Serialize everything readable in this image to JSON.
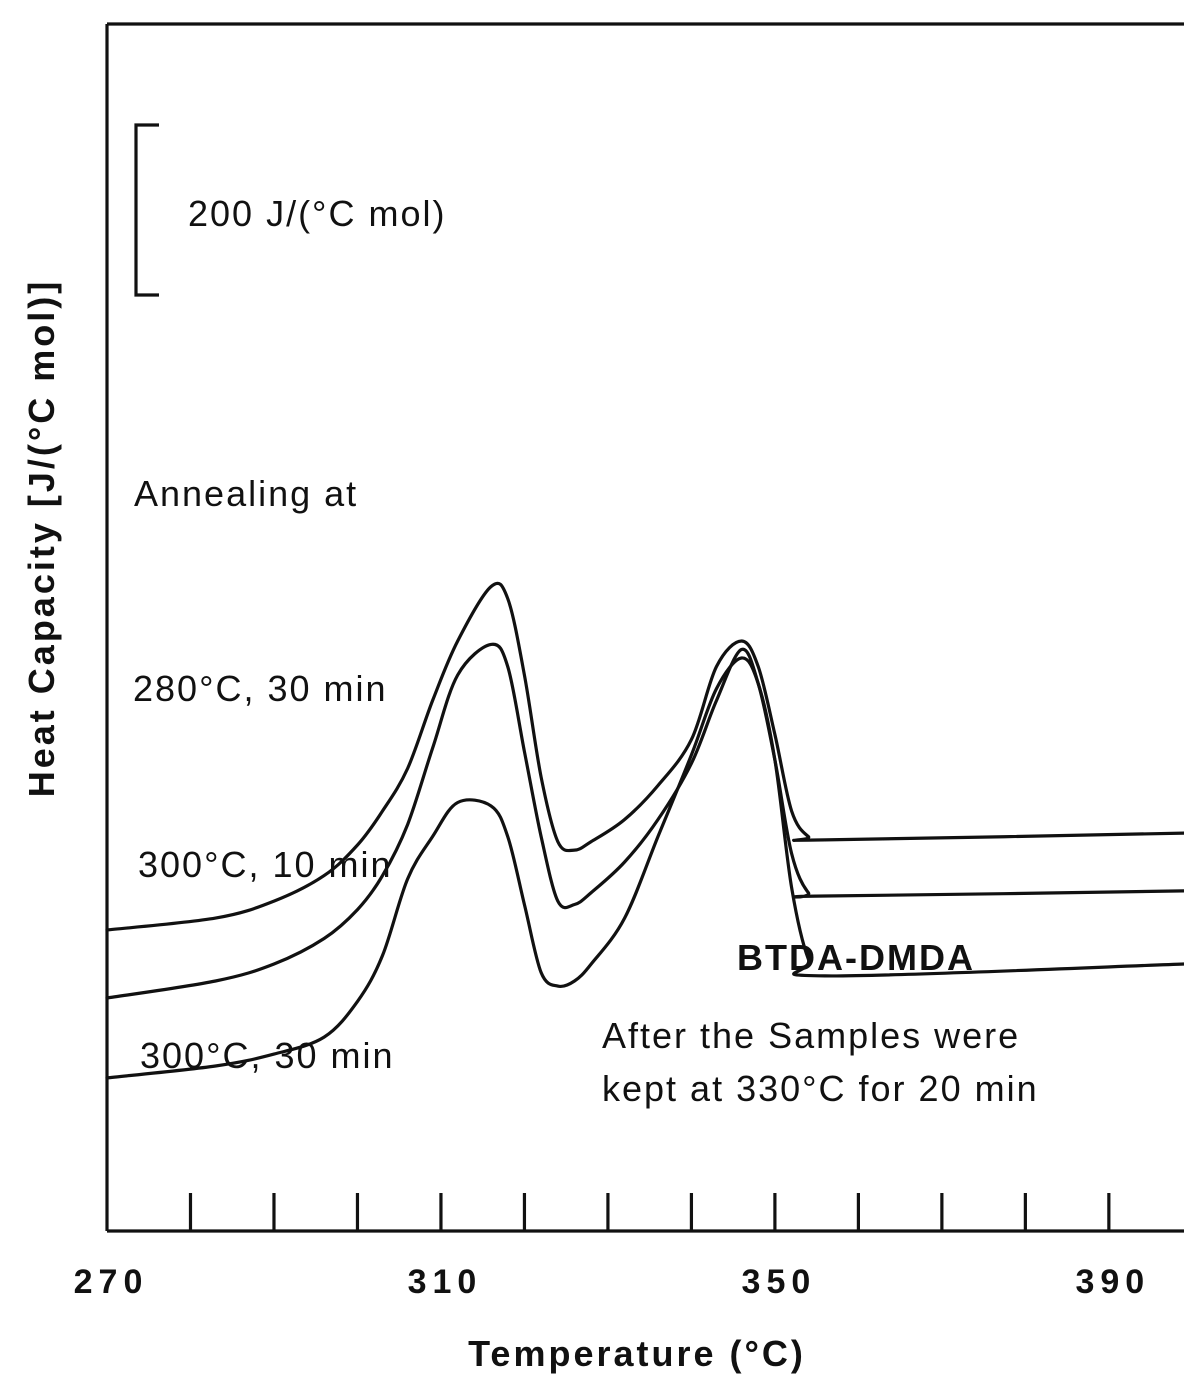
{
  "chart_data": {
    "type": "line",
    "title": "",
    "xlabel": "Temperature   (°C)",
    "ylabel": "Heat  Capacity  [J/(°C  mol)]",
    "xlim": [
      270,
      399
    ],
    "x_tick_labels": [
      "270",
      "310",
      "350",
      "390"
    ],
    "x_ticks": [
      270,
      280,
      290,
      300,
      310,
      320,
      330,
      340,
      350,
      360,
      370,
      380,
      390
    ],
    "scale_bar_label": "200  J/(°C  mol)",
    "legend_heading": "Annealing at",
    "annotations": [
      "BTDA-DMDA",
      "After the Samples were",
      "kept at 330°C for 20 min"
    ],
    "series": [
      {
        "name": "280°C, 30 min",
        "points": [
          [
            270,
            1.0
          ],
          [
            283,
            1.07
          ],
          [
            290,
            1.17
          ],
          [
            296,
            1.32
          ],
          [
            300,
            1.5
          ],
          [
            303,
            1.7
          ],
          [
            306,
            1.95
          ],
          [
            309,
            2.35
          ],
          [
            312,
            2.7
          ],
          [
            316,
            3.02
          ],
          [
            318,
            2.95
          ],
          [
            320,
            2.5
          ],
          [
            322,
            1.9
          ],
          [
            324,
            1.52
          ],
          [
            326,
            1.47
          ],
          [
            328,
            1.52
          ],
          [
            332,
            1.65
          ],
          [
            336,
            1.85
          ],
          [
            340,
            2.12
          ],
          [
            343,
            2.55
          ],
          [
            346,
            2.7
          ],
          [
            348,
            2.55
          ],
          [
            350,
            2.15
          ],
          [
            352,
            1.7
          ],
          [
            354,
            1.55
          ],
          [
            356,
            1.53
          ],
          [
            399,
            1.57
          ]
        ]
      },
      {
        "name": "300°C, 10 min",
        "points": [
          [
            270,
            0.6
          ],
          [
            283,
            0.7
          ],
          [
            290,
            0.8
          ],
          [
            296,
            0.95
          ],
          [
            300,
            1.12
          ],
          [
            303,
            1.32
          ],
          [
            306,
            1.62
          ],
          [
            309,
            2.07
          ],
          [
            312,
            2.5
          ],
          [
            316,
            2.68
          ],
          [
            318,
            2.55
          ],
          [
            320,
            2.05
          ],
          [
            322,
            1.55
          ],
          [
            324,
            1.17
          ],
          [
            326,
            1.15
          ],
          [
            328,
            1.22
          ],
          [
            332,
            1.4
          ],
          [
            336,
            1.65
          ],
          [
            340,
            1.98
          ],
          [
            343,
            2.35
          ],
          [
            346,
            2.65
          ],
          [
            348,
            2.45
          ],
          [
            350,
            2.0
          ],
          [
            352,
            1.45
          ],
          [
            354,
            1.22
          ],
          [
            356,
            1.2
          ],
          [
            399,
            1.23
          ]
        ]
      },
      {
        "name": "300°C, 30 min",
        "points": [
          [
            270,
            0.13
          ],
          [
            283,
            0.2
          ],
          [
            290,
            0.27
          ],
          [
            296,
            0.37
          ],
          [
            300,
            0.58
          ],
          [
            303,
            0.85
          ],
          [
            306,
            1.3
          ],
          [
            309,
            1.55
          ],
          [
            312,
            1.75
          ],
          [
            316,
            1.73
          ],
          [
            318,
            1.55
          ],
          [
            320,
            1.15
          ],
          [
            322,
            0.75
          ],
          [
            324,
            0.67
          ],
          [
            326,
            0.7
          ],
          [
            328,
            0.8
          ],
          [
            332,
            1.07
          ],
          [
            336,
            1.55
          ],
          [
            340,
            2.03
          ],
          [
            343,
            2.42
          ],
          [
            346,
            2.6
          ],
          [
            348,
            2.45
          ],
          [
            350,
            2.0
          ],
          [
            352,
            1.25
          ],
          [
            354,
            0.83
          ],
          [
            356,
            0.73
          ],
          [
            399,
            0.8
          ]
        ]
      }
    ]
  }
}
